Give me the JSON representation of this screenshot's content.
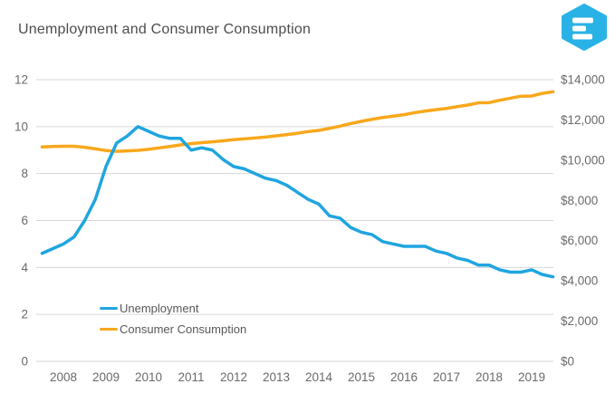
{
  "header": {
    "title": "Unemployment and Consumer Consumption",
    "logo": {
      "name": "hexagon-e-logo",
      "color": "#29B2E5",
      "bar_color": "#ffffff"
    }
  },
  "chart_data": {
    "type": "line",
    "title": "Unemployment and Consumer Consumption",
    "grid": "horizontal",
    "grid_color": "#d6d6d6",
    "axis_text_color": "#6a6a6a",
    "legend_position": "inside-bottom-left",
    "x_label": "",
    "x_ticks": [
      2008,
      2009,
      2010,
      2011,
      2012,
      2013,
      2014,
      2015,
      2016,
      2017,
      2018,
      2019
    ],
    "x_tick_labels": [
      "2008",
      "2009",
      "2010",
      "2011",
      "2012",
      "2013",
      "2014",
      "2015",
      "2016",
      "2017",
      "2018",
      "2019"
    ],
    "x": [
      2007.5,
      2007.75,
      2008,
      2008.25,
      2008.5,
      2008.75,
      2009,
      2009.25,
      2009.5,
      2009.75,
      2010,
      2010.25,
      2010.5,
      2010.75,
      2011,
      2011.25,
      2011.5,
      2011.75,
      2012,
      2012.25,
      2012.5,
      2012.75,
      2013,
      2013.25,
      2013.5,
      2013.75,
      2014,
      2014.25,
      2014.5,
      2014.75,
      2015,
      2015.25,
      2015.5,
      2015.75,
      2016,
      2016.25,
      2016.5,
      2016.75,
      2017,
      2017.25,
      2017.5,
      2017.75,
      2018,
      2018.25,
      2018.5,
      2018.75,
      2019,
      2019.25,
      2019.5
    ],
    "left_axis": {
      "min": 0,
      "max": 12,
      "tick_values": [
        0,
        2,
        4,
        6,
        8,
        10,
        12
      ],
      "tick_labels": [
        "0",
        "2",
        "4",
        "6",
        "8",
        "10",
        "12"
      ]
    },
    "right_axis": {
      "min": 0,
      "max": 14000,
      "tick_values": [
        0,
        2000,
        4000,
        6000,
        8000,
        10000,
        12000,
        14000
      ],
      "tick_labels": [
        "$0",
        "$2,000",
        "$4,000",
        "$6,000",
        "$8,000",
        "$10,000",
        "$12,000",
        "$14,000"
      ]
    },
    "series": [
      {
        "name": "Unemployment",
        "axis": "left",
        "color": "#1FA5DF",
        "values": [
          4.6,
          4.8,
          5.0,
          5.3,
          6.0,
          6.9,
          8.3,
          9.3,
          9.6,
          10.0,
          9.8,
          9.6,
          9.5,
          9.5,
          9.0,
          9.1,
          9.0,
          8.6,
          8.3,
          8.2,
          8.0,
          7.8,
          7.7,
          7.5,
          7.2,
          6.9,
          6.7,
          6.2,
          6.1,
          5.7,
          5.5,
          5.4,
          5.1,
          5.0,
          4.9,
          4.9,
          4.9,
          4.7,
          4.6,
          4.4,
          4.3,
          4.1,
          4.1,
          3.9,
          3.8,
          3.8,
          3.9,
          3.7,
          3.6
        ]
      },
      {
        "name": "Consumer Consumption",
        "axis": "right",
        "color": "#F8A81C",
        "values": [
          10660,
          10680,
          10690,
          10690,
          10640,
          10560,
          10480,
          10440,
          10460,
          10490,
          10540,
          10610,
          10680,
          10760,
          10820,
          10870,
          10910,
          10960,
          11020,
          11060,
          11100,
          11150,
          11210,
          11270,
          11340,
          11420,
          11480,
          11580,
          11690,
          11820,
          11930,
          12030,
          12120,
          12190,
          12260,
          12360,
          12440,
          12510,
          12570,
          12660,
          12740,
          12850,
          12860,
          12980,
          13080,
          13180,
          13190,
          13320,
          13400
        ]
      }
    ]
  }
}
